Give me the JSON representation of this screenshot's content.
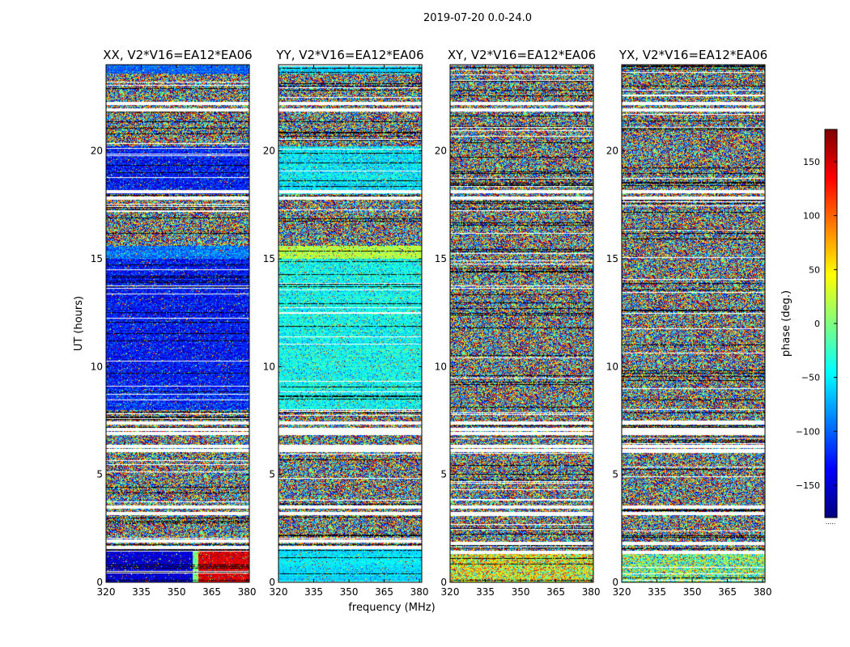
{
  "figure": {
    "suptitle": "2019-07-20 0.0-24.0",
    "xlabel": "frequency (MHz)",
    "ylabel": "UT (hours)"
  },
  "colorbar": {
    "label": "phase (deg.)",
    "range": [
      -180,
      180
    ],
    "ticks": [
      150,
      100,
      50,
      0,
      -50,
      -100,
      -150
    ],
    "tick_labels": [
      "150",
      "100",
      "50",
      "0",
      "−50",
      "−100",
      "−150"
    ],
    "colormap": [
      "#00007f",
      "#0000ff",
      "#007fff",
      "#00ffff",
      "#7fff7f",
      "#ffff00",
      "#ff7f00",
      "#ff0000",
      "#7f0000"
    ],
    "footer": "....."
  },
  "chart_data": [
    {
      "type": "heatmap",
      "title": "XX, V2*V16=EA12*EA06",
      "polarization": "XX",
      "xlim": [
        320,
        381
      ],
      "ylim": [
        0,
        24
      ],
      "xticks": [
        320,
        335,
        350,
        365,
        380
      ],
      "yticks": [
        0,
        5,
        10,
        15,
        20
      ],
      "value": "phase (deg.)",
      "bands": [
        {
          "from": 0.0,
          "to": 1.6,
          "mean_phase": -150,
          "spread": 30,
          "gradient_to": 150
        },
        {
          "from": 8.0,
          "to": 9.0,
          "mean_phase": -120,
          "spread": 80
        },
        {
          "from": 9.0,
          "to": 15.0,
          "mean_phase": -130,
          "spread": 70
        },
        {
          "from": 15.0,
          "to": 15.6,
          "mean_phase": -90,
          "spread": 60
        },
        {
          "from": 18.0,
          "to": 20.2,
          "mean_phase": -130,
          "spread": 80
        },
        {
          "from": 23.6,
          "to": 24.0,
          "mean_phase": -100,
          "spread": 40
        }
      ],
      "flagged_hours": [
        1.6,
        1.9,
        3.2,
        3.5,
        6.1,
        6.3,
        6.9,
        7.1,
        7.4,
        17.8,
        18.1,
        21.9,
        22.2
      ]
    },
    {
      "type": "heatmap",
      "title": "YY, V2*V16=EA12*EA06",
      "polarization": "YY",
      "xlim": [
        320,
        381
      ],
      "ylim": [
        0,
        24
      ],
      "xticks": [
        320,
        335,
        350,
        365,
        380
      ],
      "yticks": [
        0,
        5,
        10,
        15,
        20
      ],
      "value": "phase (deg.)",
      "bands": [
        {
          "from": 0.0,
          "to": 1.6,
          "mean_phase": -55,
          "spread": 25
        },
        {
          "from": 8.0,
          "to": 15.0,
          "mean_phase": -40,
          "spread": 60
        },
        {
          "from": 15.0,
          "to": 15.6,
          "mean_phase": 20,
          "spread": 40
        },
        {
          "from": 18.0,
          "to": 20.2,
          "mean_phase": -50,
          "spread": 60
        },
        {
          "from": 23.6,
          "to": 24.0,
          "mean_phase": -60,
          "spread": 30
        }
      ],
      "flagged_hours": [
        1.6,
        1.9,
        3.2,
        3.5,
        6.1,
        6.3,
        6.9,
        7.1,
        7.4,
        17.8,
        18.1,
        21.9,
        22.2
      ]
    },
    {
      "type": "heatmap",
      "title": "XY, V2*V16=EA12*EA06",
      "polarization": "XY",
      "xlim": [
        320,
        381
      ],
      "ylim": [
        0,
        24
      ],
      "xticks": [
        320,
        335,
        350,
        365,
        380
      ],
      "yticks": [
        0,
        5,
        10,
        15,
        20
      ],
      "value": "phase (deg.)",
      "bands": [
        {
          "from": 0.0,
          "to": 1.4,
          "mean_phase": 40,
          "spread": 160
        }
      ],
      "flagged_hours": [
        1.4,
        1.8,
        3.2,
        3.5,
        6.1,
        6.3,
        6.9,
        7.1,
        7.4,
        17.8,
        18.1,
        21.9,
        22.2
      ]
    },
    {
      "type": "heatmap",
      "title": "YX, V2*V16=EA12*EA06",
      "polarization": "YX",
      "xlim": [
        320,
        381
      ],
      "ylim": [
        0,
        24
      ],
      "xticks": [
        320,
        335,
        350,
        365,
        380
      ],
      "yticks": [
        0,
        5,
        10,
        15,
        20
      ],
      "value": "phase (deg.)",
      "bands": [
        {
          "from": 0.0,
          "to": 1.4,
          "mean_phase": 0,
          "spread": 170
        }
      ],
      "flagged_hours": [
        1.4,
        1.8,
        3.2,
        3.5,
        6.1,
        6.3,
        6.9,
        7.1,
        7.4,
        17.8,
        18.1,
        21.9,
        22.2
      ]
    }
  ]
}
